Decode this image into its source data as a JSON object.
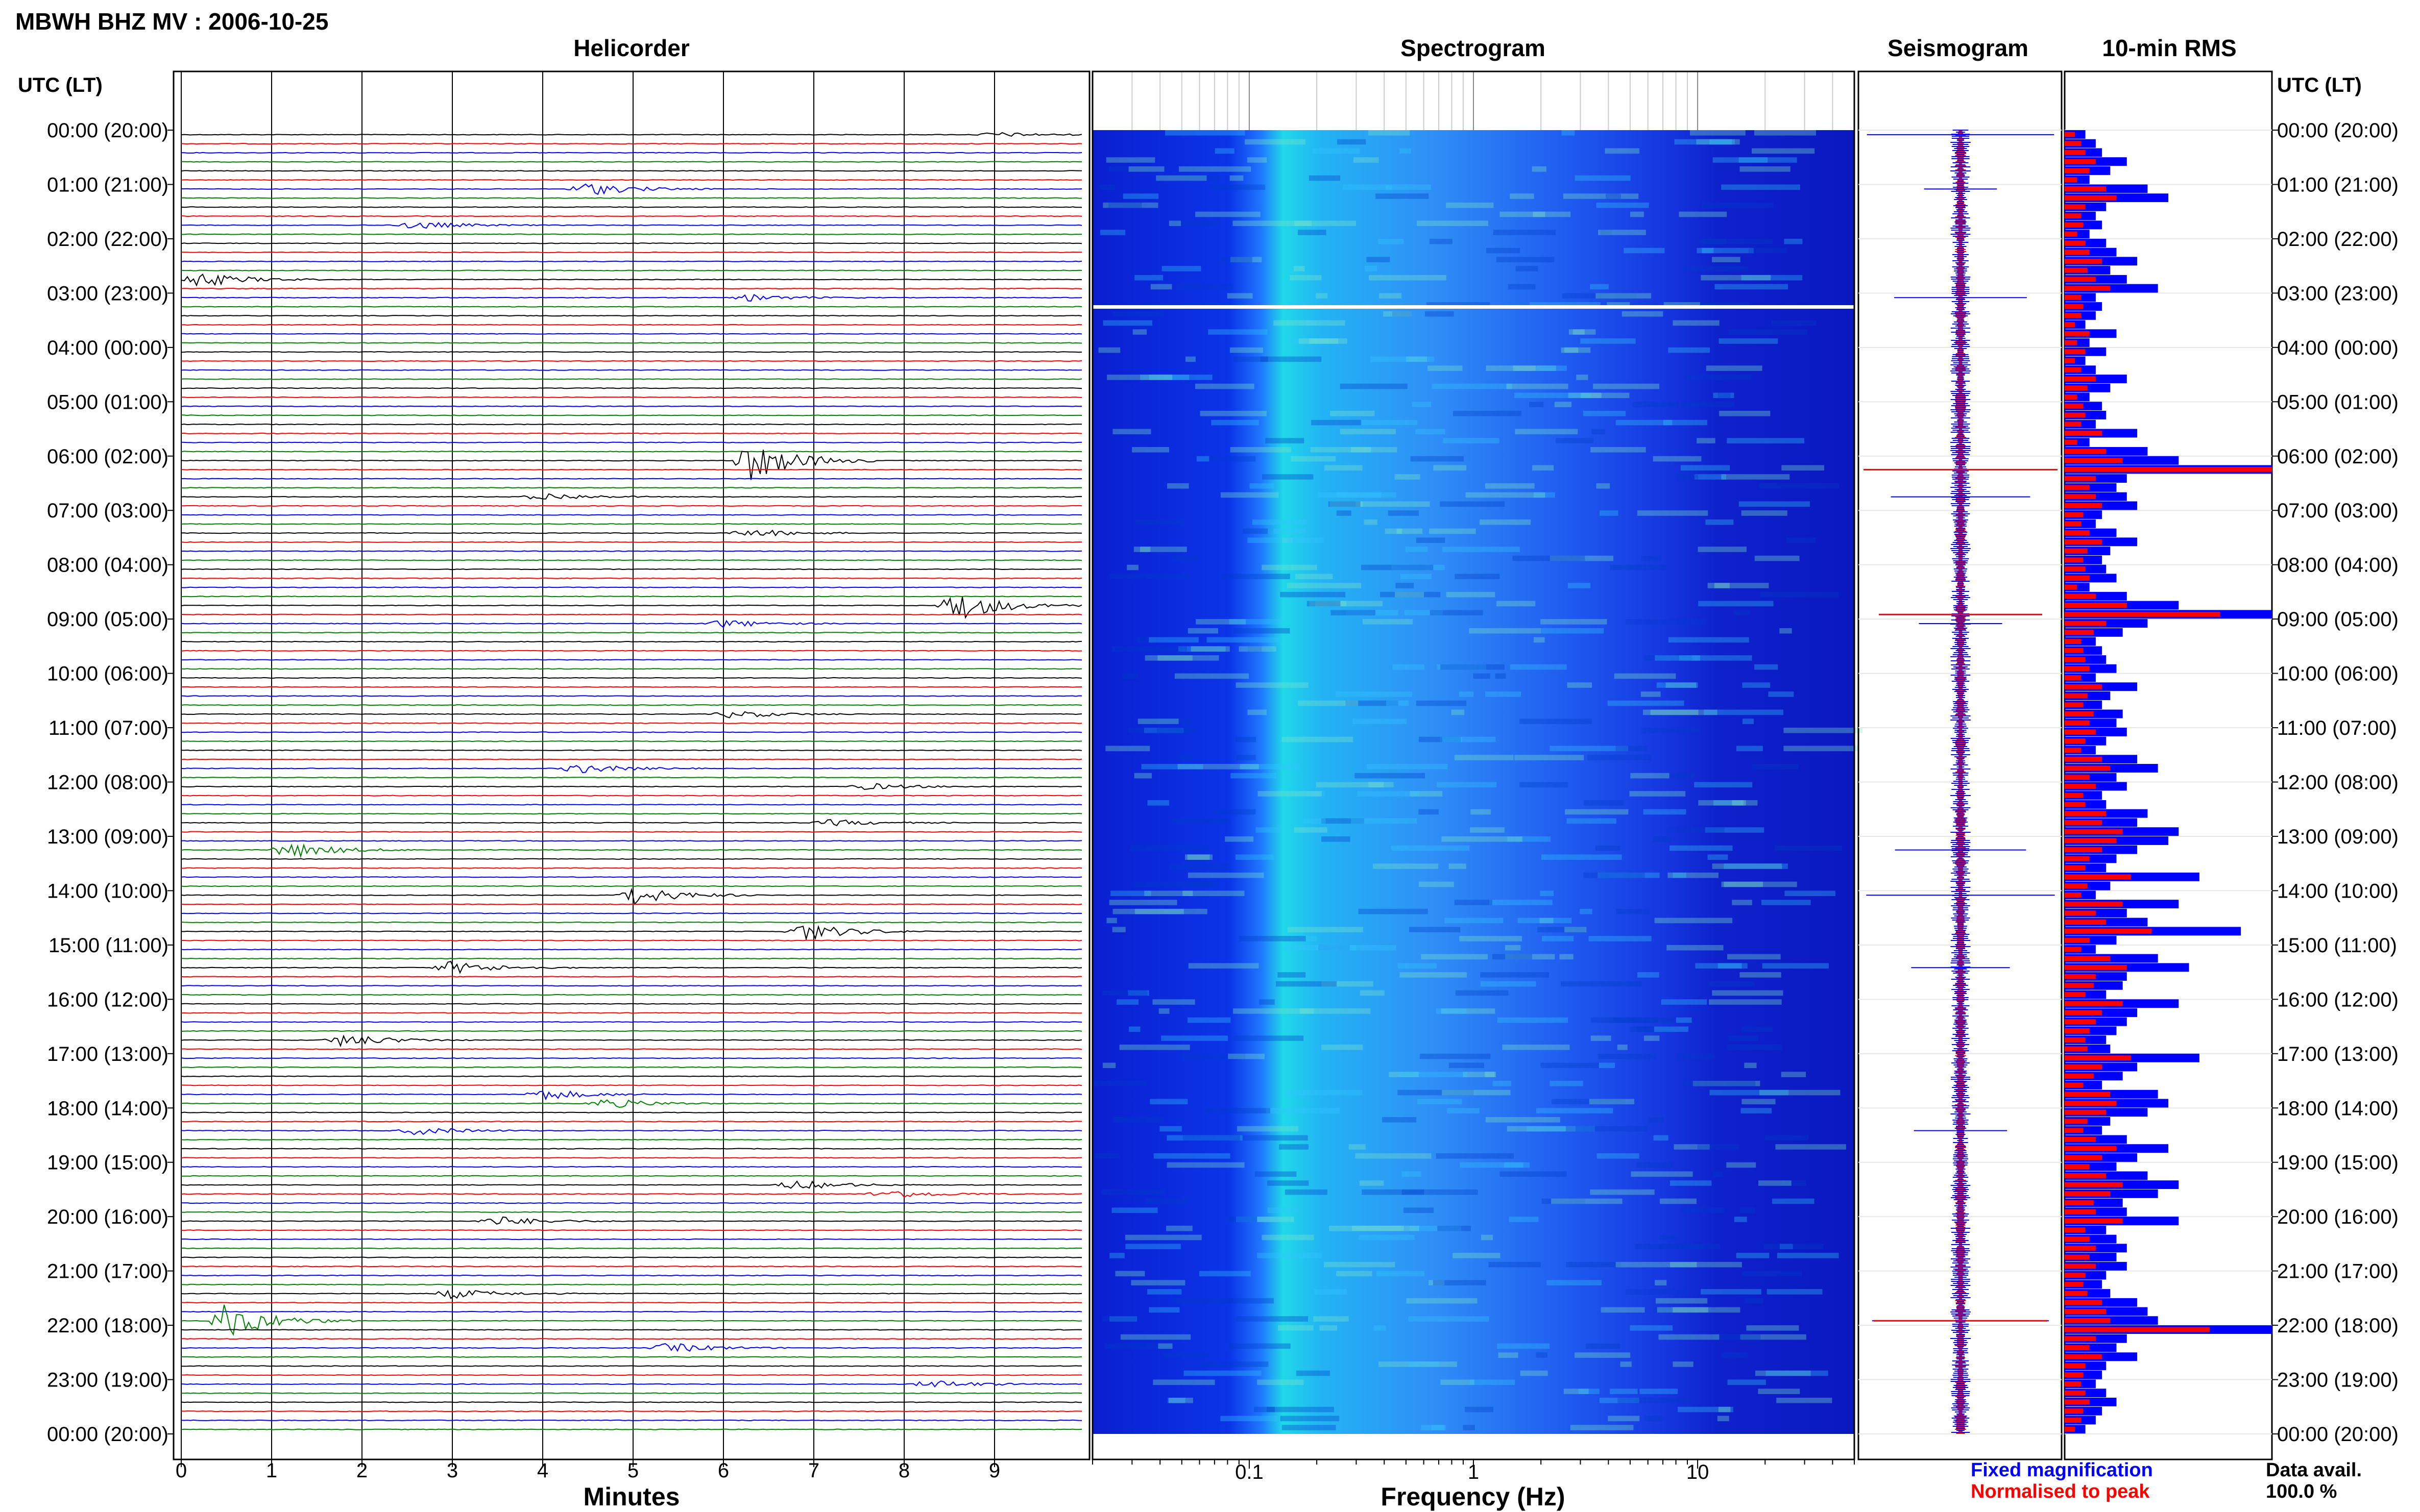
{
  "title": "MBWH BHZ MV : 2006-10-25",
  "time_axis_header": "UTC (LT)",
  "time_labels": [
    "00:00 (20:00)",
    "01:00 (21:00)",
    "02:00 (22:00)",
    "03:00 (23:00)",
    "04:00 (00:00)",
    "05:00 (01:00)",
    "06:00 (02:00)",
    "07:00 (03:00)",
    "08:00 (04:00)",
    "09:00 (05:00)",
    "10:00 (06:00)",
    "11:00 (07:00)",
    "12:00 (08:00)",
    "13:00 (09:00)",
    "14:00 (10:00)",
    "15:00 (11:00)",
    "16:00 (12:00)",
    "17:00 (13:00)",
    "18:00 (14:00)",
    "19:00 (15:00)",
    "20:00 (16:00)",
    "21:00 (17:00)",
    "22:00 (18:00)",
    "23:00 (19:00)",
    "00:00 (20:00)"
  ],
  "panels": {
    "helicorder": {
      "title": "Helicorder",
      "xlabel": "Minutes",
      "xticks": [
        "0",
        "1",
        "2",
        "3",
        "4",
        "5",
        "6",
        "7",
        "8",
        "9"
      ]
    },
    "spectrogram": {
      "title": "Spectrogram",
      "xlabel": "Frequency (Hz)",
      "xticks": [
        "0.1",
        "1",
        "10"
      ]
    },
    "seismogram": {
      "title": "Seismogram"
    },
    "rms": {
      "title": "10-min RMS"
    }
  },
  "legend": {
    "fixed": "Fixed magnification",
    "normalised": "Normalised to peak",
    "fixed_color": "#0000ff",
    "normalised_color": "#ff0000"
  },
  "data_availability": {
    "label": "Data avail.",
    "value": "100.0 %"
  },
  "chart_data": [
    {
      "type": "helicorder",
      "title": "Helicorder",
      "xlabel": "Minutes",
      "x_range": [
        0,
        10
      ],
      "rows": 144,
      "row_minutes": 10,
      "trace_colors": [
        "#000000",
        "#ff0000",
        "#0000ff",
        "#008000"
      ],
      "events": [
        {
          "row": 0,
          "minute": 9.0,
          "amp": 0.3
        },
        {
          "row": 6,
          "minute": 4.5,
          "amp": 0.8
        },
        {
          "row": 10,
          "minute": 2.6,
          "amp": 0.5
        },
        {
          "row": 16,
          "minute": 0.2,
          "amp": 0.9
        },
        {
          "row": 18,
          "minute": 6.3,
          "amp": 0.4
        },
        {
          "row": 36,
          "minute": 6.3,
          "amp": 2.5
        },
        {
          "row": 40,
          "minute": 4.0,
          "amp": 0.5
        },
        {
          "row": 44,
          "minute": 6.3,
          "amp": 0.5
        },
        {
          "row": 52,
          "minute": 8.6,
          "amp": 1.8
        },
        {
          "row": 54,
          "minute": 6.0,
          "amp": 0.5
        },
        {
          "row": 64,
          "minute": 6.1,
          "amp": 0.5
        },
        {
          "row": 70,
          "minute": 4.4,
          "amp": 0.6
        },
        {
          "row": 72,
          "minute": 7.6,
          "amp": 0.4
        },
        {
          "row": 76,
          "minute": 7.2,
          "amp": 0.4
        },
        {
          "row": 79,
          "minute": 1.2,
          "amp": 1.0
        },
        {
          "row": 84,
          "minute": 5.0,
          "amp": 1.2
        },
        {
          "row": 88,
          "minute": 6.9,
          "amp": 1.1
        },
        {
          "row": 92,
          "minute": 3.0,
          "amp": 0.8
        },
        {
          "row": 100,
          "minute": 1.8,
          "amp": 0.8
        },
        {
          "row": 106,
          "minute": 4.0,
          "amp": 0.7
        },
        {
          "row": 107,
          "minute": 4.7,
          "amp": 0.6
        },
        {
          "row": 110,
          "minute": 2.6,
          "amp": 0.5
        },
        {
          "row": 116,
          "minute": 6.8,
          "amp": 0.6
        },
        {
          "row": 117,
          "minute": 7.8,
          "amp": 0.6
        },
        {
          "row": 120,
          "minute": 3.5,
          "amp": 0.6
        },
        {
          "row": 128,
          "minute": 3.0,
          "amp": 0.6
        },
        {
          "row": 131,
          "minute": 0.5,
          "amp": 2.2
        },
        {
          "row": 134,
          "minute": 5.4,
          "amp": 0.6
        },
        {
          "row": 138,
          "minute": 8.3,
          "amp": 0.5
        }
      ]
    },
    {
      "type": "heatmap",
      "title": "Spectrogram",
      "xlabel": "Frequency (Hz)",
      "xscale": "log",
      "x_range": [
        0.02,
        50
      ],
      "colormap": [
        "#0000c8",
        "#0060ff",
        "#00c8ff",
        "#80ffb0"
      ],
      "rows": 144
    },
    {
      "type": "seismogram",
      "title": "Seismogram",
      "series": [
        {
          "name": "Fixed magnification",
          "color": "#0000ff"
        },
        {
          "name": "Normalised to peak",
          "color": "#ff0000"
        }
      ],
      "spikes_rows": [
        0,
        6,
        18,
        40,
        54,
        79,
        84,
        92,
        110,
        131
      ]
    },
    {
      "type": "bar",
      "orientation": "horizontal",
      "title": "10-min RMS",
      "categories_count": 144,
      "series": [
        {
          "name": "Fixed magnification",
          "color": "#0000ff",
          "values": [
            0.1,
            0.15,
            0.18,
            0.3,
            0.22,
            0.12,
            0.4,
            0.5,
            0.2,
            0.15,
            0.18,
            0.12,
            0.2,
            0.25,
            0.35,
            0.22,
            0.3,
            0.45,
            0.15,
            0.18,
            0.15,
            0.1,
            0.25,
            0.12,
            0.2,
            0.1,
            0.15,
            0.3,
            0.22,
            0.12,
            0.18,
            0.2,
            0.15,
            0.35,
            0.12,
            0.4,
            0.55,
            1.0,
            0.3,
            0.25,
            0.3,
            0.35,
            0.18,
            0.15,
            0.25,
            0.35,
            0.22,
            0.18,
            0.2,
            0.25,
            0.12,
            0.3,
            0.55,
            1.0,
            0.4,
            0.28,
            0.15,
            0.18,
            0.2,
            0.25,
            0.15,
            0.35,
            0.22,
            0.18,
            0.28,
            0.25,
            0.3,
            0.2,
            0.15,
            0.35,
            0.45,
            0.25,
            0.3,
            0.18,
            0.2,
            0.4,
            0.35,
            0.55,
            0.5,
            0.35,
            0.25,
            0.2,
            0.65,
            0.22,
            0.15,
            0.55,
            0.3,
            0.4,
            0.85,
            0.25,
            0.15,
            0.45,
            0.6,
            0.3,
            0.28,
            0.2,
            0.55,
            0.35,
            0.3,
            0.25,
            0.2,
            0.22,
            0.65,
            0.35,
            0.28,
            0.18,
            0.45,
            0.5,
            0.4,
            0.22,
            0.18,
            0.3,
            0.5,
            0.35,
            0.25,
            0.4,
            0.55,
            0.45,
            0.28,
            0.3,
            0.55,
            0.2,
            0.25,
            0.3,
            0.25,
            0.3,
            0.2,
            0.18,
            0.22,
            0.35,
            0.4,
            0.45,
            1.0,
            0.3,
            0.25,
            0.35,
            0.2,
            0.18,
            0.15,
            0.2,
            0.25,
            0.18,
            0.15,
            0.1
          ]
        },
        {
          "name": "Normalised to peak",
          "color": "#ff0000",
          "values": [
            0.05,
            0.08,
            0.1,
            0.15,
            0.12,
            0.06,
            0.2,
            0.25,
            0.1,
            0.08,
            0.09,
            0.06,
            0.1,
            0.12,
            0.18,
            0.11,
            0.15,
            0.22,
            0.08,
            0.09,
            0.08,
            0.05,
            0.12,
            0.06,
            0.1,
            0.05,
            0.08,
            0.15,
            0.11,
            0.06,
            0.09,
            0.1,
            0.08,
            0.18,
            0.06,
            0.2,
            0.28,
            1.0,
            0.15,
            0.12,
            0.15,
            0.18,
            0.09,
            0.08,
            0.12,
            0.18,
            0.11,
            0.09,
            0.1,
            0.12,
            0.06,
            0.15,
            0.3,
            0.75,
            0.2,
            0.14,
            0.08,
            0.09,
            0.1,
            0.12,
            0.08,
            0.18,
            0.11,
            0.09,
            0.14,
            0.12,
            0.15,
            0.1,
            0.08,
            0.18,
            0.22,
            0.12,
            0.15,
            0.09,
            0.1,
            0.2,
            0.18,
            0.28,
            0.25,
            0.18,
            0.12,
            0.1,
            0.32,
            0.11,
            0.08,
            0.28,
            0.15,
            0.2,
            0.42,
            0.12,
            0.08,
            0.22,
            0.3,
            0.15,
            0.14,
            0.1,
            0.28,
            0.18,
            0.15,
            0.12,
            0.1,
            0.11,
            0.32,
            0.18,
            0.14,
            0.09,
            0.22,
            0.25,
            0.2,
            0.11,
            0.09,
            0.15,
            0.25,
            0.18,
            0.12,
            0.2,
            0.28,
            0.22,
            0.14,
            0.15,
            0.28,
            0.1,
            0.12,
            0.15,
            0.12,
            0.15,
            0.1,
            0.09,
            0.11,
            0.18,
            0.2,
            0.22,
            0.7,
            0.15,
            0.12,
            0.18,
            0.1,
            0.09,
            0.08,
            0.1,
            0.12,
            0.09,
            0.08,
            0.05
          ]
        }
      ]
    }
  ]
}
